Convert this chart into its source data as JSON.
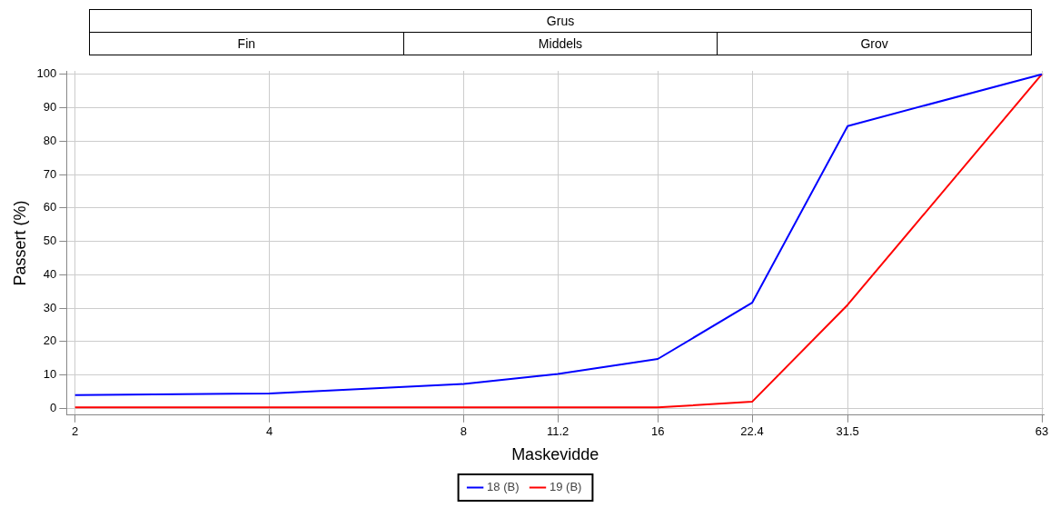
{
  "chart_data": {
    "type": "line",
    "title": "Grus",
    "xlabel": "Maskevidde",
    "ylabel": "Passert (%)",
    "x": [
      2,
      4,
      8,
      11.2,
      16,
      22.4,
      31.5,
      63
    ],
    "series": [
      {
        "name": "18 (B)",
        "color": "#0000ff",
        "values": [
          4,
          4.5,
          7.3,
          10.3,
          14.8,
          31.6,
          84.5,
          100
        ]
      },
      {
        "name": "19 (B)",
        "color": "#ff0000",
        "values": [
          0.3,
          0.3,
          0.3,
          0.3,
          0.3,
          2,
          31,
          100
        ]
      }
    ],
    "log": "x",
    "xlim": [
      1.94,
      63.4
    ],
    "xticks": [
      2,
      4,
      8,
      11.2,
      16,
      22.4,
      31.5,
      63
    ],
    "ylim": [
      -2,
      101
    ],
    "yticks": [
      0,
      10,
      20,
      30,
      40,
      50,
      60,
      70,
      80,
      90,
      100
    ],
    "annotations": [
      "Fin",
      "Middels",
      "Grov"
    ],
    "grid": true,
    "legend": "bottom",
    "marker": "none",
    "line_style": "solid"
  }
}
